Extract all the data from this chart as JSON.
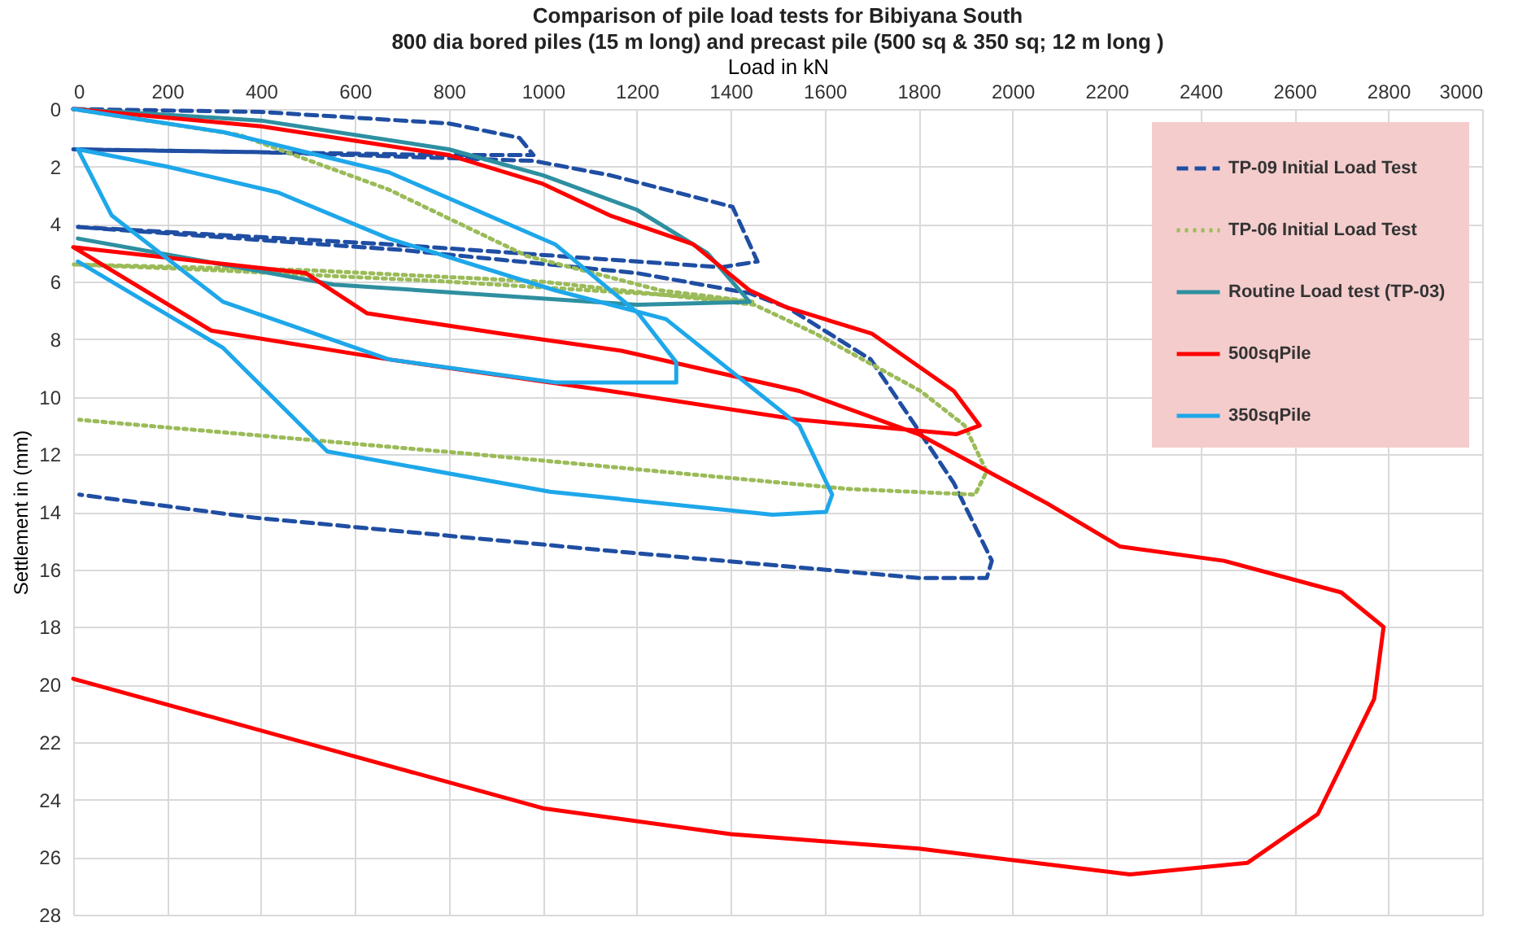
{
  "chart_data": {
    "type": "line",
    "title": "Comparison of pile load tests for Bibiyana South",
    "subtitle": "800 dia bored piles (15 m long) and precast pile (500 sq & 350 sq; 12 m long )",
    "xlabel": "Load in kN",
    "ylabel": "Settlement in (mm)",
    "xlim": [
      0,
      3000
    ],
    "xticks": [
      0,
      200,
      400,
      600,
      800,
      1000,
      1200,
      1400,
      1600,
      1800,
      2000,
      2200,
      2400,
      2600,
      2800,
      3000
    ],
    "ylim": [
      28,
      0
    ],
    "yticks": [
      0,
      2,
      4,
      6,
      8,
      10,
      12,
      14,
      16,
      18,
      20,
      22,
      24,
      26,
      28
    ],
    "grid": true,
    "legend": "top right",
    "marker": "none",
    "series": [
      {
        "name": "TP-09 Initial Load Test",
        "color": "#1f4ea3",
        "line_style": "dashed",
        "x": [
          0,
          400,
          800,
          950,
          980,
          800,
          400,
          0,
          400,
          980,
          1143,
          1404,
          1457,
          1380,
          672,
          10,
          700,
          1200,
          1440,
          1521,
          1698,
          1793,
          1875,
          1956,
          1945,
          1804,
          1174,
          385,
          13
        ],
        "values": [
          0,
          0.1,
          0.5,
          1.0,
          1.6,
          1.6,
          1.5,
          1.4,
          1.5,
          1.8,
          2.3,
          3.4,
          5.3,
          5.5,
          4.7,
          4.1,
          4.9,
          5.7,
          6.4,
          6.9,
          8.7,
          11.0,
          13.0,
          15.7,
          16.3,
          16.3,
          15.4,
          14.2,
          13.4
        ]
      },
      {
        "name": "TP-06 Initial Load Test",
        "color": "#9bbb59",
        "line_style": "dotted",
        "x": [
          0,
          354,
          672,
          965,
          1250,
          1450,
          1300,
          800,
          300,
          0,
          500,
          1000,
          1450,
          1580,
          1804,
          1898,
          1945,
          1920,
          1648,
          857,
          13
        ],
        "values": [
          0,
          0.9,
          2.8,
          5.1,
          6.3,
          6.7,
          6.5,
          6.0,
          5.6,
          5.4,
          5.6,
          6.0,
          6.8,
          7.8,
          9.8,
          11.0,
          12.6,
          13.4,
          13.2,
          12.0,
          10.8
        ]
      },
      {
        "name": "Routine Load test (TP-03)",
        "color": "#2e8fa0",
        "line_style": "solid",
        "x": [
          0,
          400,
          800,
          1000,
          1200,
          1350,
          1440,
          1200,
          555,
          10
        ],
        "values": [
          0,
          0.4,
          1.4,
          2.3,
          3.5,
          5.0,
          6.7,
          6.8,
          6.1,
          4.5
        ]
      },
      {
        "name": "500sqPile",
        "color": "#ff0000",
        "line_style": "solid",
        "x": [
          0,
          400,
          800,
          1000,
          1143,
          1320,
          1440,
          1520,
          1700,
          1875,
          1930,
          1880,
          1546,
          1143,
          672,
          294,
          0,
          495,
          626,
          909,
          1167,
          1546,
          1800,
          2073,
          2228,
          2450,
          2700,
          2790,
          2770,
          2650,
          2500,
          2250,
          1800,
          1400,
          1000,
          600,
          200,
          0
        ],
        "values": [
          0,
          0.6,
          1.6,
          2.6,
          3.7,
          4.7,
          6.3,
          6.9,
          7.8,
          9.8,
          11.0,
          11.3,
          10.8,
          9.8,
          8.7,
          7.7,
          4.8,
          5.7,
          7.1,
          7.8,
          8.4,
          9.8,
          11.3,
          13.7,
          15.2,
          15.7,
          16.8,
          18.0,
          20.5,
          24.5,
          26.2,
          26.6,
          25.7,
          25.2,
          24.3,
          22.5,
          20.7,
          19.8
        ]
      },
      {
        "name": "350sqPile",
        "color": "#1ea7ea",
        "line_style": "solid",
        "x": [
          0,
          319,
          672,
          1026,
          1203,
          1284,
          1284,
          1026,
          672,
          319,
          82,
          10,
          200,
          436,
          672,
          1026,
          1262,
          1546,
          1616,
          1603,
          1489,
          1015,
          541,
          319,
          10
        ],
        "values": [
          0,
          0.8,
          2.2,
          4.7,
          7.1,
          8.8,
          9.5,
          9.5,
          8.7,
          6.7,
          3.7,
          1.4,
          2.0,
          2.9,
          4.5,
          6.3,
          7.3,
          11.0,
          13.4,
          14.0,
          14.1,
          13.3,
          11.9,
          8.3,
          5.3
        ]
      }
    ]
  }
}
